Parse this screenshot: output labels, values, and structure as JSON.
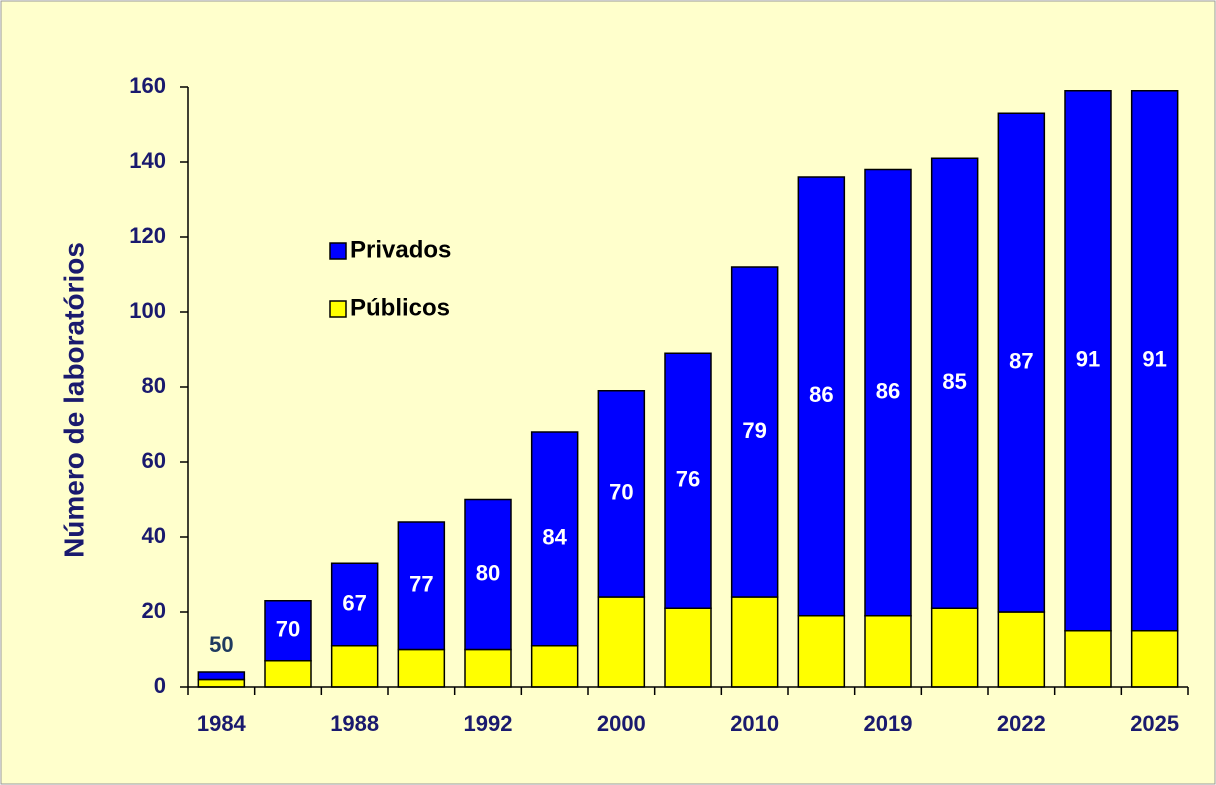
{
  "chart_data": {
    "type": "stacked_bar",
    "y_axis_label": "Número de laboratórios",
    "categories": [
      "1984",
      null,
      "1988",
      null,
      "1992",
      null,
      "2000",
      null,
      "2010",
      null,
      "2019",
      null,
      "2022",
      null,
      "2025"
    ],
    "series": [
      {
        "name": "Públicos",
        "color": "#ffff00",
        "values": [
          2,
          7,
          11,
          10,
          10,
          11,
          24,
          21,
          24,
          19,
          19,
          21,
          20,
          15,
          15
        ]
      },
      {
        "name": "Privados",
        "color": "#0000ff",
        "values": [
          2,
          16,
          22,
          34,
          40,
          57,
          55,
          68,
          88,
          117,
          119,
          120,
          133,
          144,
          144
        ]
      }
    ],
    "bar_labels": [
      50,
      70,
      67,
      77,
      80,
      84,
      70,
      76,
      79,
      86,
      86,
      85,
      87,
      91,
      91
    ],
    "ylim": [
      0,
      160
    ],
    "yticks": [
      0,
      20,
      40,
      60,
      80,
      100,
      120,
      140,
      160
    ],
    "grid": false
  }
}
